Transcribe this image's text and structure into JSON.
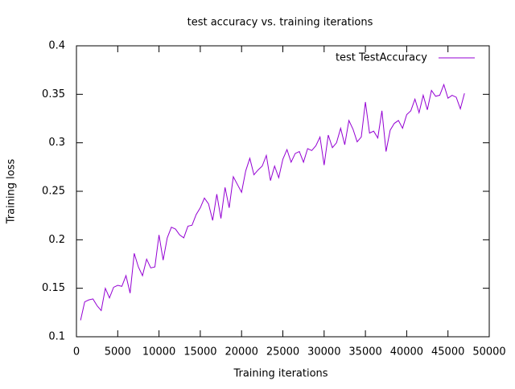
{
  "chart_data": {
    "type": "line",
    "title": "test accuracy vs. training iterations",
    "x_label": "Training iterations",
    "y_label": "Training loss",
    "xlim": [
      0,
      50000
    ],
    "xticks": [
      0,
      5000,
      10000,
      15000,
      20000,
      25000,
      30000,
      35000,
      40000,
      45000,
      50000
    ],
    "ylim": [
      0.1,
      0.4
    ],
    "yticks": [
      0.1,
      0.15,
      0.2,
      0.25,
      0.3,
      0.35,
      0.4
    ],
    "legend_position": "top-right",
    "x": [
      500,
      1000,
      1500,
      2000,
      2500,
      3000,
      3500,
      4000,
      4500,
      5000,
      5500,
      6000,
      6500,
      7000,
      7500,
      8000,
      8500,
      9000,
      9500,
      10000,
      10500,
      11000,
      11500,
      12000,
      12500,
      13000,
      13500,
      14000,
      14500,
      15000,
      15500,
      16000,
      16500,
      17000,
      17500,
      18000,
      18500,
      19000,
      19500,
      20000,
      20500,
      21000,
      21500,
      22000,
      22500,
      23000,
      23500,
      24000,
      24500,
      25000,
      25500,
      26000,
      26500,
      27000,
      27500,
      28000,
      28500,
      29000,
      29500,
      30000,
      30500,
      31000,
      31500,
      32000,
      32500,
      33000,
      33500,
      34000,
      34500,
      35000,
      35500,
      36000,
      36500,
      37000,
      37500,
      38000,
      38500,
      39000,
      39500,
      40000,
      40500,
      41000,
      41500,
      42000,
      42500,
      43000,
      43500,
      44000,
      44500,
      45000,
      45500,
      46000,
      46500,
      47000
    ],
    "series": [
      {
        "name": "test TestAccuracy",
        "color": "#9400d3",
        "values": [
          0.117,
          0.136,
          0.138,
          0.139,
          0.132,
          0.127,
          0.15,
          0.14,
          0.151,
          0.153,
          0.152,
          0.163,
          0.145,
          0.186,
          0.172,
          0.163,
          0.18,
          0.171,
          0.172,
          0.205,
          0.179,
          0.202,
          0.213,
          0.211,
          0.205,
          0.202,
          0.214,
          0.215,
          0.226,
          0.233,
          0.243,
          0.237,
          0.22,
          0.247,
          0.222,
          0.254,
          0.233,
          0.265,
          0.257,
          0.249,
          0.271,
          0.284,
          0.267,
          0.272,
          0.276,
          0.287,
          0.261,
          0.276,
          0.264,
          0.283,
          0.293,
          0.28,
          0.289,
          0.291,
          0.28,
          0.294,
          0.292,
          0.297,
          0.306,
          0.277,
          0.308,
          0.295,
          0.3,
          0.315,
          0.298,
          0.323,
          0.314,
          0.301,
          0.306,
          0.342,
          0.31,
          0.312,
          0.305,
          0.333,
          0.291,
          0.313,
          0.32,
          0.323,
          0.315,
          0.329,
          0.333,
          0.345,
          0.331,
          0.349,
          0.334,
          0.354,
          0.348,
          0.349,
          0.36,
          0.346,
          0.349,
          0.347,
          0.335,
          0.351
        ]
      }
    ]
  }
}
